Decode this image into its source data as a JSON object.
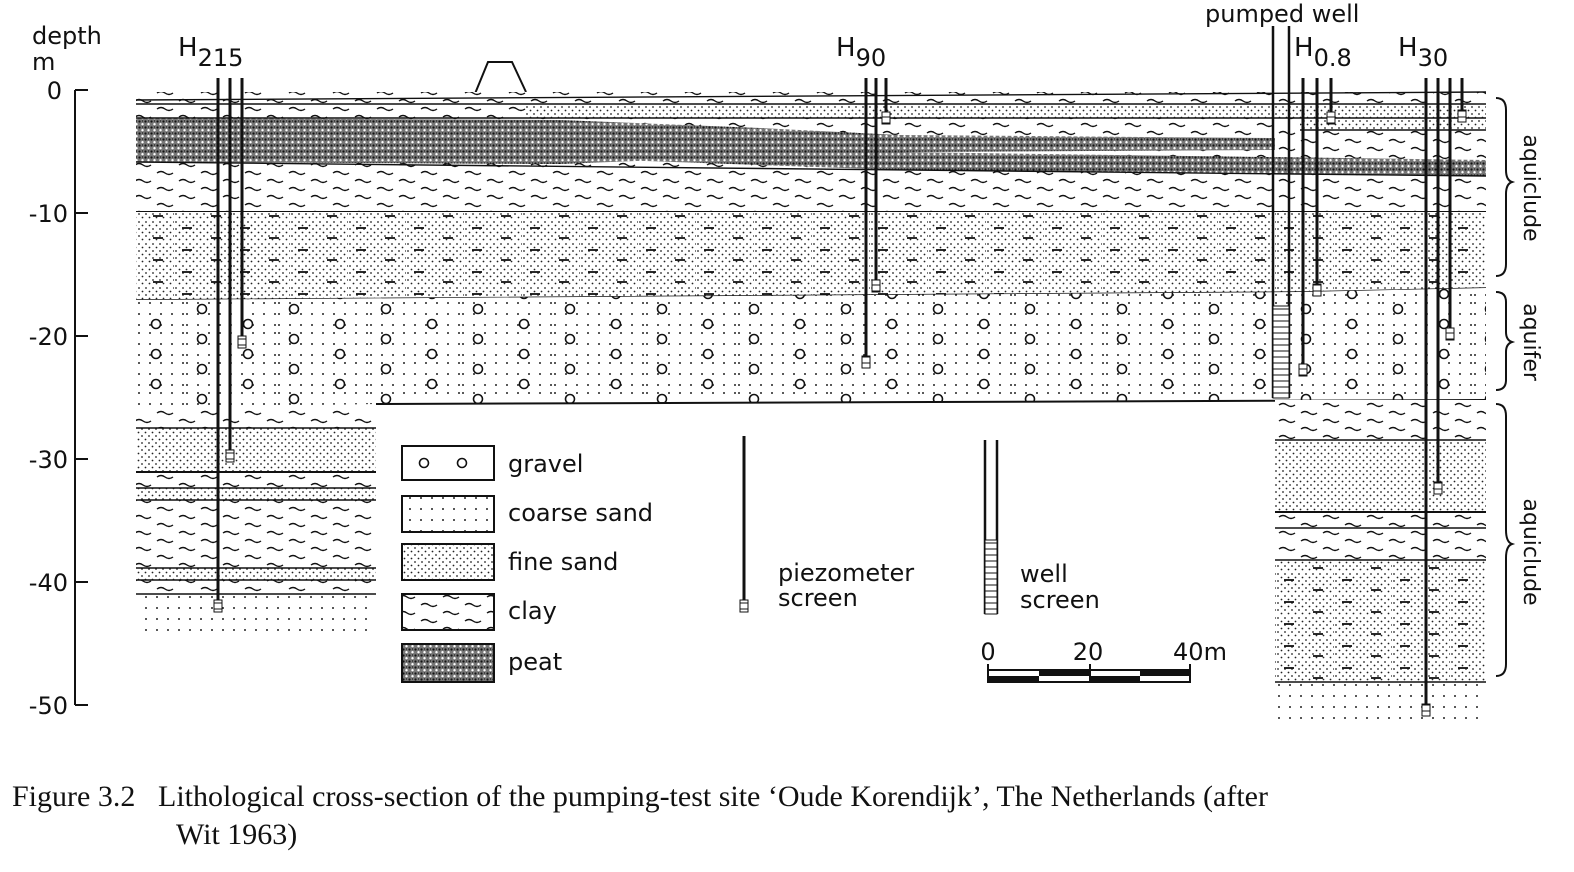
{
  "depth_axis": {
    "title_line1": "depth",
    "title_line2": "m",
    "ticks": [
      "0",
      "-10",
      "-20",
      "-30",
      "-40",
      "-50"
    ]
  },
  "piezometers": {
    "h215": {
      "main": "H",
      "sub": "215"
    },
    "h90": {
      "main": "H",
      "sub": "90"
    },
    "h08": {
      "main": "H",
      "sub": "0.8"
    },
    "h30": {
      "main": "H",
      "sub": "30"
    }
  },
  "pumped_well_label": "pumped well",
  "zones": {
    "upper": "aquiclude",
    "middle": "aquifer",
    "lower": "aquiclude"
  },
  "legend": {
    "gravel": "gravel",
    "coarse_sand": "coarse sand",
    "fine_sand": "fine sand",
    "clay": "clay",
    "peat": "peat",
    "piezometer_line1": "piezometer",
    "piezometer_line2": "screen",
    "well_line1": "well",
    "well_line2": "screen"
  },
  "scale_bar": {
    "t0": "0",
    "t20": "20",
    "t40": "40m"
  },
  "caption": {
    "number": "Figure 3.2",
    "line1": "Lithological cross-section of the pumping-test site ‘Oude Korendijk’, The Netherlands (after",
    "line2": "Wit 1963)"
  }
}
